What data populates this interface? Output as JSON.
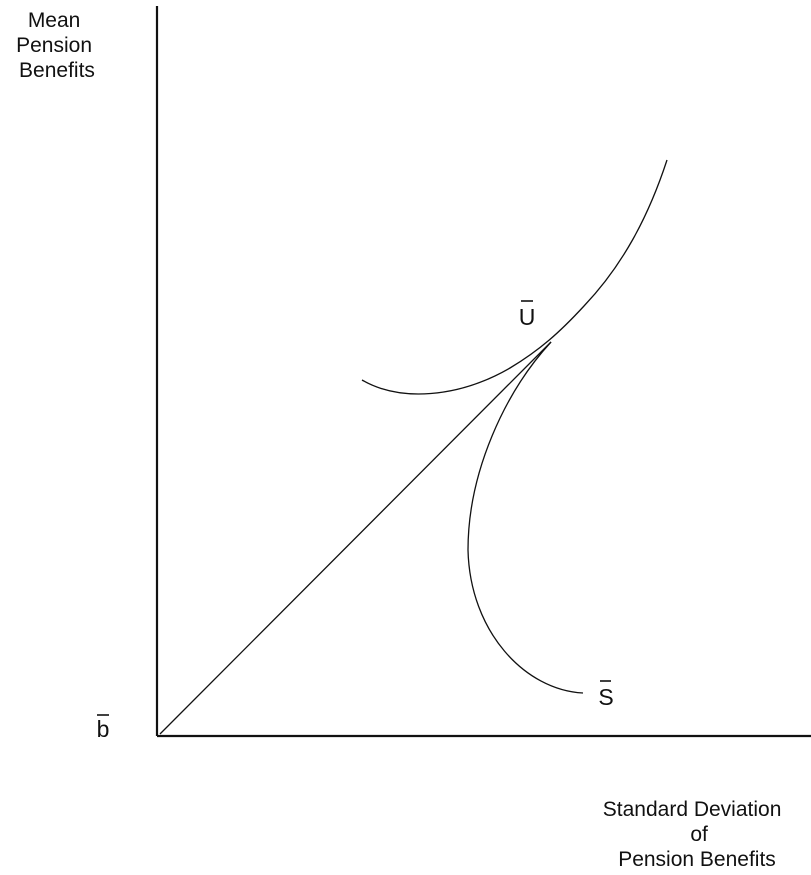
{
  "figure": {
    "y_axis_label": [
      "Mean",
      "Pension",
      "Benefits"
    ],
    "x_axis_label": [
      "Standard Deviation",
      "of",
      "Pension Benefits"
    ],
    "origin_label": "b",
    "indifference_curve_label": "U",
    "opportunity_curve_label": "S"
  },
  "colors": {
    "ink": "#111111",
    "background": "#ffffff"
  }
}
